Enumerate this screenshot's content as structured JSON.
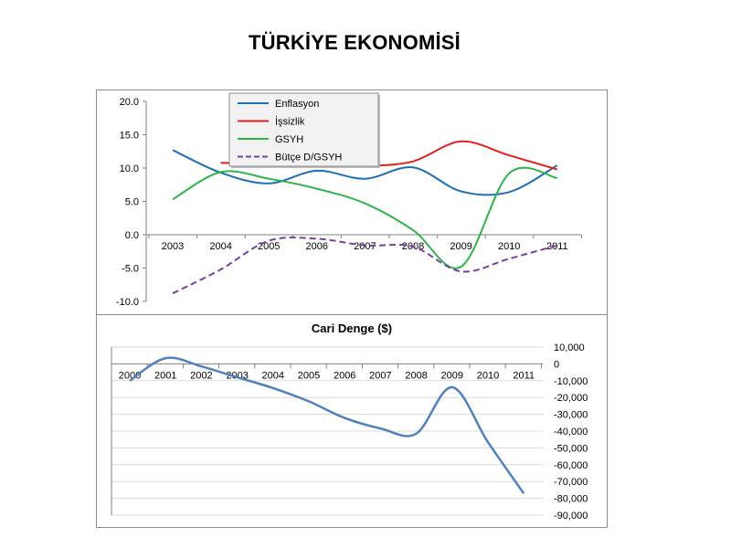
{
  "slide": {
    "title": "TÜRKİYE EKONOMİSİ"
  },
  "chart_data": [
    {
      "type": "line",
      "title": "",
      "categories": [
        "2003",
        "2004",
        "2005",
        "2006",
        "2007",
        "2008",
        "2009",
        "2010",
        "2011"
      ],
      "ylim": [
        -10,
        20
      ],
      "yticks": [
        "20.0",
        "15.0",
        "10.0",
        "5.0",
        "0.0",
        "-5.0",
        "-10.0"
      ],
      "legend_position": "top-center",
      "series": [
        {
          "name": "Enflasyon",
          "color": "#1f6fb5",
          "dash": false,
          "values": [
            12.7,
            9.3,
            7.7,
            9.6,
            8.4,
            10.1,
            6.5,
            6.4,
            10.4
          ]
        },
        {
          "name": "İşsizlik",
          "color": "#e0201b",
          "dash": false,
          "values": [
            null,
            10.8,
            10.6,
            10.2,
            10.3,
            11.0,
            14.0,
            11.9,
            9.8
          ]
        },
        {
          "name": "GSYH",
          "color": "#2db34a",
          "dash": false,
          "values": [
            5.3,
            9.4,
            8.4,
            6.9,
            4.7,
            0.7,
            -4.8,
            9.2,
            8.5
          ]
        },
        {
          "name": "Bütçe D/GSYH",
          "color": "#7b3fa0",
          "dash": true,
          "values": [
            -8.8,
            -5.2,
            -0.9,
            -0.6,
            -1.6,
            -1.8,
            -5.5,
            -3.6,
            -1.6
          ]
        }
      ]
    },
    {
      "type": "line",
      "title": "Cari Denge ($)",
      "categories": [
        "2000",
        "2001",
        "2002",
        "2003",
        "2004",
        "2005",
        "2006",
        "2007",
        "2008",
        "2009",
        "2010",
        "2011"
      ],
      "ylim": [
        -90000,
        10000
      ],
      "yticks": [
        "10,000",
        "0",
        "-10,000",
        "-20,000",
        "-30,000",
        "-40,000",
        "-50,000",
        "-60,000",
        "-70,000",
        "-80,000",
        "-90,000"
      ],
      "grid": true,
      "series": [
        {
          "name": "",
          "color": "#4f81bd",
          "values": [
            -10000,
            3400,
            -1500,
            -8000,
            -14400,
            -22300,
            -32200,
            -38400,
            -41500,
            -13900,
            -46600,
            -77100
          ]
        }
      ]
    }
  ]
}
